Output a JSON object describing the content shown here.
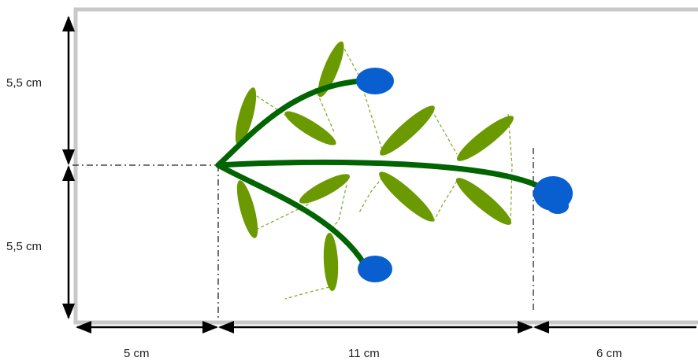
{
  "dimensions": {
    "left_top": "5,5 cm",
    "left_bottom": "5,5 cm",
    "bottom_left": "5 cm",
    "bottom_middle": "11 cm",
    "bottom_right": "6 cm"
  },
  "colors": {
    "border": "#c8c8c8",
    "stem": "#006400",
    "leaf": "#6a9a00",
    "leaf_guide": "#7aa820",
    "flower": "#0a5fd0",
    "dimension_line": "#000000"
  }
}
